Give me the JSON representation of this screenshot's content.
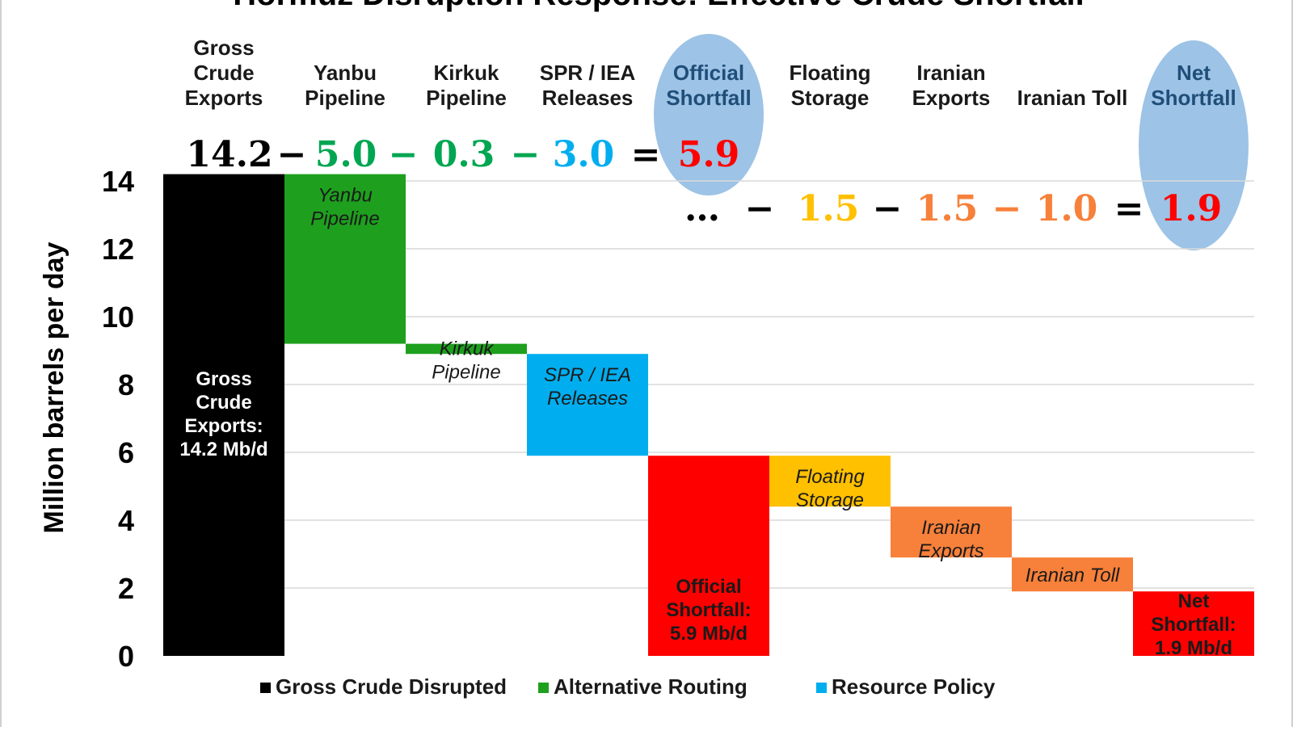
{
  "chart_data": {
    "type": "waterfall",
    "title": "Hormuz Disruption Response: Effective Crude Shortfall",
    "ylabel": "Million barrels per day",
    "ylim": [
      0,
      14
    ],
    "yticks": [
      "0",
      "2",
      "4",
      "6",
      "8",
      "10",
      "12",
      "14"
    ],
    "grid": true,
    "categories": [
      {
        "key": "gross",
        "header": [
          "Gross",
          "Crude",
          "Exports"
        ],
        "value": 14.2,
        "kind": "total",
        "color": "#000000",
        "bar_label": [
          "Gross",
          "Crude",
          "Exports:",
          "14.2 Mb/d"
        ],
        "label_style": "bold",
        "label_color": "#ffffff"
      },
      {
        "key": "yanbu",
        "header": [
          "Yanbu",
          "Pipeline"
        ],
        "value": -5.0,
        "kind": "step",
        "color": "#1ea01e",
        "bar_label": [
          "Yanbu",
          "Pipeline"
        ],
        "label_style": "italic",
        "label_color": "#1a1a1a"
      },
      {
        "key": "kirkuk",
        "header": [
          "Kirkuk",
          "Pipeline"
        ],
        "value": -0.3,
        "kind": "step",
        "color": "#1ea01e",
        "bar_label": [
          "Kirkuk",
          "Pipeline"
        ],
        "label_style": "italic",
        "label_color": "#1a1a1a"
      },
      {
        "key": "spr",
        "header": [
          "SPR / IEA",
          "Releases"
        ],
        "value": -3.0,
        "kind": "step",
        "color": "#00aeef",
        "bar_label": [
          "SPR / IEA",
          "Releases"
        ],
        "label_style": "italic",
        "label_color": "#1a1a1a"
      },
      {
        "key": "official",
        "header": [
          "Official",
          "Shortfall"
        ],
        "value": 5.9,
        "kind": "total",
        "color": "#ff0000",
        "bar_label": [
          "Official",
          "Shortfall:",
          "5.9 Mb/d"
        ],
        "label_style": "bold",
        "label_color": "#1a1a1a",
        "highlight": true
      },
      {
        "key": "floating",
        "header": [
          "Floating",
          "Storage"
        ],
        "value": -1.5,
        "kind": "step",
        "color": "#ffc000",
        "bar_label": [
          "Floating",
          "Storage"
        ],
        "label_style": "italic",
        "label_color": "#1a1a1a"
      },
      {
        "key": "iranian_exports",
        "header": [
          "Iranian",
          "Exports"
        ],
        "value": -1.5,
        "kind": "step",
        "color": "#f7803a",
        "bar_label": [
          "Iranian",
          "Exports"
        ],
        "label_style": "italic",
        "label_color": "#1a1a1a"
      },
      {
        "key": "iranian_toll",
        "header": [
          "Iranian Toll"
        ],
        "value": -1.0,
        "kind": "step",
        "color": "#f7803a",
        "bar_label": [
          "Iranian Toll"
        ],
        "label_style": "italic",
        "label_color": "#1a1a1a"
      },
      {
        "key": "net",
        "header": [
          "Net",
          "Shortfall"
        ],
        "value": 1.9,
        "kind": "total",
        "color": "#ff0000",
        "bar_label": [
          "Net",
          "Shortfall:",
          "1.9 Mb/d"
        ],
        "label_style": "bold",
        "label_color": "#1a1a1a",
        "highlight": true
      }
    ],
    "equation_1": [
      {
        "text": "14.2",
        "color": "#000000"
      },
      {
        "text": "−",
        "color": "#000000"
      },
      {
        "text": "5.0",
        "color": "#00a651"
      },
      {
        "text": "−",
        "color": "#00a651"
      },
      {
        "text": "0.3",
        "color": "#00a651"
      },
      {
        "text": "−",
        "color": "#00a651"
      },
      {
        "text": "3.0",
        "color": "#00aeef"
      },
      {
        "text": "=",
        "color": "#000000"
      },
      {
        "text": "5.9",
        "color": "#ff0000"
      }
    ],
    "equation_2": [
      {
        "text": "…",
        "color": "#000000"
      },
      {
        "text": "−",
        "color": "#000000"
      },
      {
        "text": "1.5",
        "color": "#ffc000"
      },
      {
        "text": "−",
        "color": "#000000"
      },
      {
        "text": "1.5",
        "color": "#f7803a"
      },
      {
        "text": "−",
        "color": "#f7803a"
      },
      {
        "text": "1.0",
        "color": "#f7803a"
      },
      {
        "text": "=",
        "color": "#000000"
      },
      {
        "text": "1.9",
        "color": "#ff0000"
      }
    ],
    "legend": [
      {
        "label": "Gross Crude Disrupted",
        "color": "#000000"
      },
      {
        "label": "Alternative Routing",
        "color": "#1ea01e"
      },
      {
        "label": "Resource Policy",
        "color": "#00aeef"
      }
    ],
    "highlight_color": "#9dc3e6"
  }
}
